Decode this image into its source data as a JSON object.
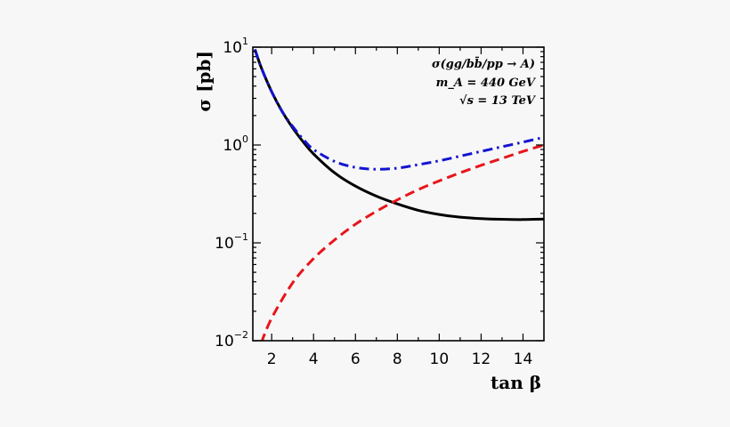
{
  "chart_data": {
    "type": "line",
    "title": "",
    "xlabel": "tan β",
    "ylabel": "σ [pb]",
    "x_scale": "linear",
    "y_scale": "log",
    "xlim": [
      1.1,
      15
    ],
    "ylim": [
      0.01,
      10
    ],
    "x_ticks": [
      2,
      4,
      6,
      8,
      10,
      12,
      14
    ],
    "y_ticks": [
      {
        "value": 10,
        "base": "10",
        "exp": "1"
      },
      {
        "value": 1,
        "base": "10",
        "exp": "0"
      },
      {
        "value": 0.1,
        "base": "10",
        "exp": "−1"
      },
      {
        "value": 0.01,
        "base": "10",
        "exp": "−2"
      }
    ],
    "annotations": [
      "σ(gg/bb̄/pp → A)",
      "m_A = 440 GeV",
      "√s = 13 TeV"
    ],
    "grid": false,
    "series": [
      {
        "style": "solid",
        "color": "#000000",
        "x": [
          1.2,
          1.5,
          2,
          2.5,
          3,
          3.5,
          4,
          5,
          6,
          7,
          8,
          9,
          10,
          11,
          12,
          13,
          14,
          15
        ],
        "y": [
          9.5,
          6.2,
          3.5,
          2.2,
          1.5,
          1.08,
          0.81,
          0.52,
          0.38,
          0.3,
          0.25,
          0.215,
          0.195,
          0.183,
          0.177,
          0.174,
          0.173,
          0.175
        ]
      },
      {
        "style": "dashed",
        "color": "#e8141a",
        "x": [
          1.5,
          2,
          3,
          4,
          5,
          6,
          7,
          8,
          9,
          10,
          11,
          12,
          13,
          14,
          15
        ],
        "y": [
          0.0095,
          0.017,
          0.039,
          0.069,
          0.107,
          0.155,
          0.21,
          0.275,
          0.35,
          0.43,
          0.52,
          0.62,
          0.73,
          0.86,
          1.0
        ]
      },
      {
        "style": "dashdot",
        "color": "#1414d2",
        "x": [
          1.2,
          1.5,
          2,
          2.5,
          3,
          3.5,
          4,
          5,
          6,
          7,
          8,
          9,
          10,
          11,
          12,
          13,
          14,
          15
        ],
        "y": [
          9.5,
          6.2,
          3.5,
          2.2,
          1.55,
          1.15,
          0.9,
          0.68,
          0.59,
          0.565,
          0.58,
          0.63,
          0.69,
          0.77,
          0.86,
          0.96,
          1.07,
          1.2
        ]
      }
    ]
  }
}
